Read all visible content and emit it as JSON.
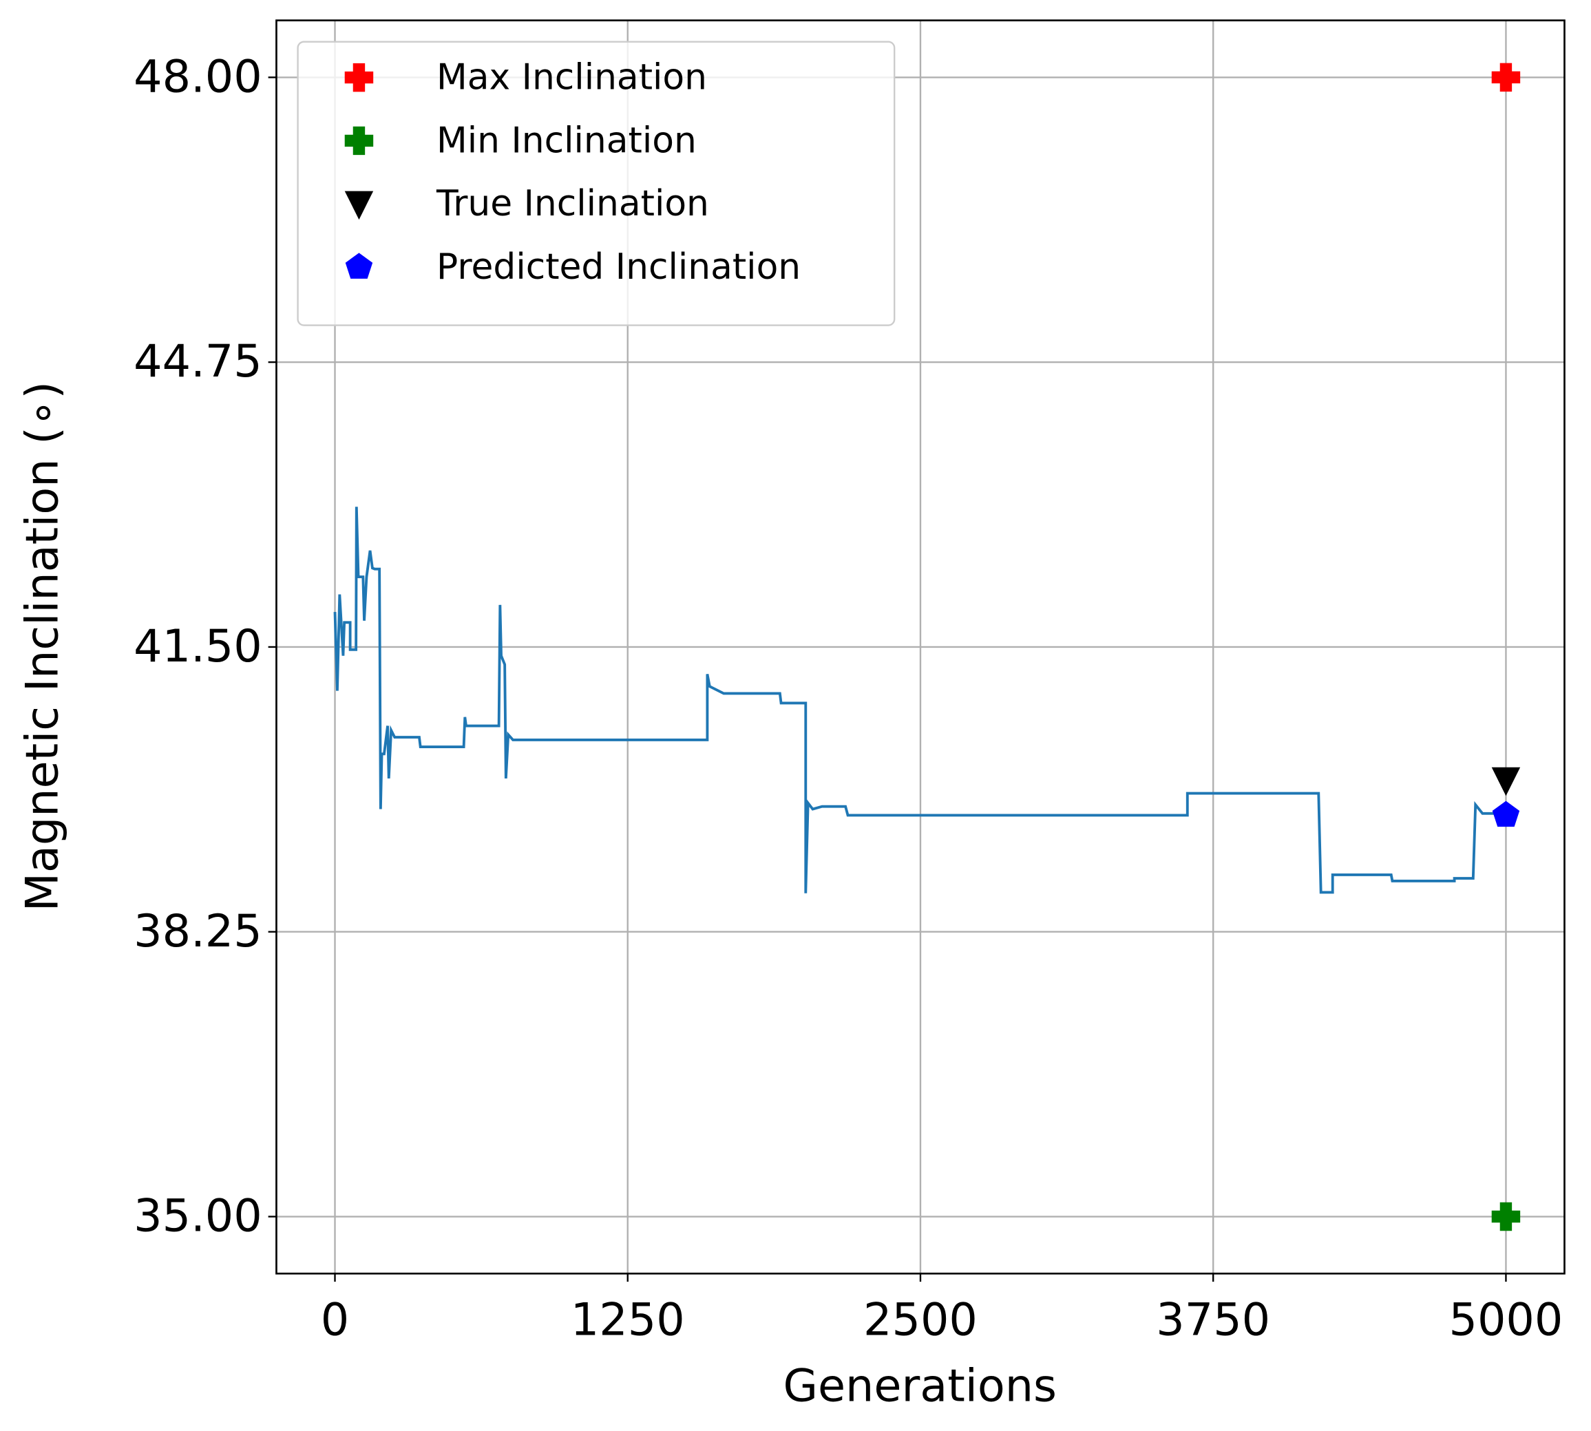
{
  "chart_data": {
    "type": "line",
    "xlabel": "Generations",
    "ylabel": "Magnetic Inclination (∘)",
    "xlim": [
      -250,
      5250
    ],
    "ylim": [
      34.35,
      48.65
    ],
    "xticks": [
      0,
      1250,
      2500,
      3750,
      5000
    ],
    "yticks": [
      {
        "value": 35,
        "label": "35.00"
      },
      {
        "value": 38.25,
        "label": "38.25"
      },
      {
        "value": 41.5,
        "label": "41.50"
      },
      {
        "value": 44.75,
        "label": "44.75"
      },
      {
        "value": 48,
        "label": "48.00"
      }
    ],
    "grid": true,
    "legend": "upper left",
    "line": {
      "color": "#1f77b4",
      "x": [
        0,
        10,
        20,
        35,
        40,
        65,
        65,
        90,
        92,
        100,
        120,
        125,
        135,
        150,
        160,
        170,
        190,
        195,
        200,
        210,
        225,
        230,
        240,
        255,
        360,
        365,
        550,
        555,
        560,
        700,
        705,
        710,
        725,
        730,
        740,
        760,
        1590,
        1590,
        1600,
        1660,
        1900,
        1905,
        2010,
        2010,
        2020,
        2040,
        2080,
        2180,
        2190,
        3640,
        3640,
        4200,
        4210,
        4260,
        4260,
        4510,
        4515,
        4780,
        4780,
        4860,
        4870,
        4900,
        5000
      ],
      "values": [
        41.9,
        41.0,
        42.1,
        41.4,
        41.78,
        41.78,
        41.47,
        41.47,
        43.1,
        42.3,
        42.3,
        41.8,
        42.3,
        42.6,
        42.4,
        42.39,
        42.39,
        39.65,
        40.28,
        40.28,
        40.6,
        40.0,
        40.55,
        40.47,
        40.47,
        40.36,
        40.36,
        40.7,
        40.6,
        40.6,
        41.98,
        41.4,
        41.3,
        40.0,
        40.5,
        40.44,
        40.44,
        41.19,
        41.05,
        40.97,
        40.97,
        40.86,
        40.86,
        38.69,
        39.72,
        39.65,
        39.68,
        39.68,
        39.58,
        39.58,
        39.83,
        39.83,
        38.7,
        38.7,
        38.9,
        38.9,
        38.83,
        38.83,
        38.86,
        38.86,
        39.7,
        39.6,
        39.6
      ]
    },
    "markers": [
      {
        "name": "Max Inclination",
        "color": "#ff0000",
        "marker": "plus",
        "x": 5000,
        "value": 48
      },
      {
        "name": "Min Inclination",
        "color": "#008000",
        "marker": "plus",
        "x": 5000,
        "value": 35
      },
      {
        "name": "True Inclination",
        "color": "#000000",
        "marker": "triangle-down",
        "x": 5000,
        "value": 39.98
      },
      {
        "name": "Predicted Inclination",
        "color": "#0000ff",
        "marker": "pentagon",
        "x": 5000,
        "value": 39.58
      }
    ]
  }
}
